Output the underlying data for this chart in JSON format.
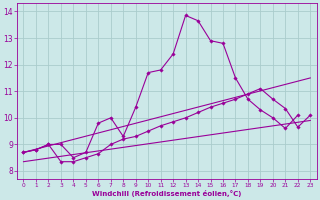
{
  "xlabel": "Windchill (Refroidissement éolien,°C)",
  "background_color": "#cce8e8",
  "grid_color": "#aacccc",
  "line_color": "#990099",
  "xlim": [
    -0.5,
    23.5
  ],
  "ylim": [
    7.7,
    14.3
  ],
  "xticks": [
    0,
    1,
    2,
    3,
    4,
    5,
    6,
    7,
    8,
    9,
    10,
    11,
    12,
    13,
    14,
    15,
    16,
    17,
    18,
    19,
    20,
    21,
    22,
    23
  ],
  "yticks": [
    8,
    9,
    10,
    11,
    12,
    13,
    14
  ],
  "series": [
    {
      "x": [
        0,
        1,
        2,
        3,
        4,
        5,
        6,
        7,
        8,
        9,
        10,
        11,
        12,
        13,
        14,
        15,
        16,
        17,
        18,
        19,
        20,
        21,
        22
      ],
      "y": [
        8.7,
        8.8,
        9.0,
        9.0,
        8.5,
        8.7,
        9.8,
        10.0,
        9.3,
        10.4,
        11.7,
        11.8,
        12.4,
        13.85,
        13.65,
        12.9,
        12.8,
        11.5,
        10.7,
        10.3,
        10.0,
        9.6,
        10.1
      ],
      "marker": true
    },
    {
      "x": [
        0,
        1,
        2,
        3,
        4,
        5,
        6,
        7,
        8,
        9,
        10,
        11,
        12,
        13,
        14,
        15,
        16,
        17,
        18,
        19,
        20,
        21,
        22,
        23
      ],
      "y": [
        8.7,
        8.8,
        9.0,
        8.35,
        8.35,
        8.5,
        8.65,
        9.0,
        9.2,
        9.3,
        9.5,
        9.7,
        9.85,
        10.0,
        10.2,
        10.4,
        10.55,
        10.7,
        10.9,
        11.1,
        10.7,
        10.35,
        9.65,
        10.1
      ],
      "marker": true
    },
    {
      "x": [
        0,
        23
      ],
      "y": [
        8.7,
        11.5
      ],
      "marker": false
    },
    {
      "x": [
        0,
        23
      ],
      "y": [
        8.35,
        9.9
      ],
      "marker": false
    }
  ]
}
